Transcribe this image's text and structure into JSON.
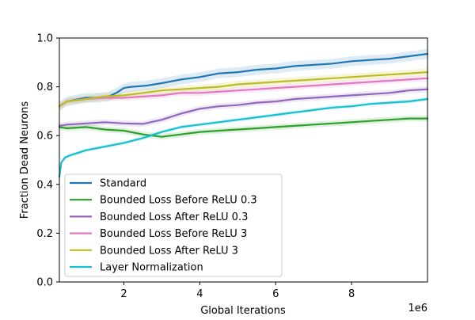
{
  "chart_data": {
    "type": "line",
    "title": "",
    "xlabel": "Global Iterations",
    "ylabel": "Fraction Dead Neurons",
    "x_offset_label": "1e6",
    "xlim": [
      0.3,
      10.0
    ],
    "ylim": [
      0.0,
      1.0
    ],
    "x_ticks": [
      {
        "value": 2,
        "label": "2"
      },
      {
        "value": 4,
        "label": "4"
      },
      {
        "value": 6,
        "label": "6"
      },
      {
        "value": 8,
        "label": "8"
      }
    ],
    "y_ticks": [
      {
        "value": 0.0,
        "label": "0.0"
      },
      {
        "value": 0.2,
        "label": "0.2"
      },
      {
        "value": 0.4,
        "label": "0.4"
      },
      {
        "value": 0.6,
        "label": "0.6"
      },
      {
        "value": 0.8,
        "label": "0.8"
      },
      {
        "value": 1.0,
        "label": "1.0"
      }
    ],
    "grid": false,
    "legend_position": "lower-left",
    "series": [
      {
        "name": "Standard",
        "color": "#1f77b4",
        "band": 0.02,
        "x": [
          0.3,
          0.5,
          1.0,
          1.3,
          1.6,
          1.8,
          2.0,
          2.2,
          2.6,
          3.0,
          3.5,
          4.0,
          4.5,
          5.0,
          5.5,
          6.0,
          6.5,
          7.0,
          7.5,
          8.0,
          8.5,
          9.0,
          9.5,
          10.0
        ],
        "y": [
          0.72,
          0.74,
          0.755,
          0.755,
          0.76,
          0.775,
          0.795,
          0.8,
          0.805,
          0.815,
          0.83,
          0.84,
          0.855,
          0.86,
          0.87,
          0.875,
          0.885,
          0.89,
          0.895,
          0.905,
          0.91,
          0.915,
          0.925,
          0.935
        ]
      },
      {
        "name": "Bounded Loss Before ReLU 0.3",
        "color": "#2ca02c",
        "band": 0.012,
        "x": [
          0.3,
          0.5,
          1.0,
          1.5,
          2.0,
          2.5,
          3.0,
          3.5,
          4.0,
          4.5,
          5.0,
          5.5,
          6.0,
          6.5,
          7.0,
          7.5,
          8.0,
          8.5,
          9.0,
          9.5,
          10.0
        ],
        "y": [
          0.635,
          0.63,
          0.635,
          0.625,
          0.62,
          0.605,
          0.595,
          0.605,
          0.615,
          0.62,
          0.625,
          0.63,
          0.635,
          0.64,
          0.645,
          0.65,
          0.655,
          0.66,
          0.665,
          0.67,
          0.67
        ]
      },
      {
        "name": "Bounded Loss After ReLU 0.3",
        "color": "#9467bd",
        "band": 0.012,
        "x": [
          0.3,
          0.5,
          1.0,
          1.5,
          2.0,
          2.5,
          3.0,
          3.5,
          4.0,
          4.5,
          5.0,
          5.5,
          6.0,
          6.5,
          7.0,
          7.5,
          8.0,
          8.5,
          9.0,
          9.5,
          10.0
        ],
        "y": [
          0.64,
          0.645,
          0.65,
          0.655,
          0.65,
          0.648,
          0.665,
          0.69,
          0.71,
          0.72,
          0.725,
          0.735,
          0.74,
          0.75,
          0.755,
          0.76,
          0.765,
          0.77,
          0.775,
          0.785,
          0.79
        ]
      },
      {
        "name": "Bounded Loss Before ReLU 3",
        "color": "#e377c2",
        "band": 0.012,
        "x": [
          0.3,
          0.5,
          1.0,
          1.5,
          2.0,
          2.5,
          3.0,
          3.5,
          4.0,
          4.5,
          5.0,
          5.5,
          6.0,
          6.5,
          7.0,
          7.5,
          8.0,
          8.5,
          9.0,
          9.5,
          10.0
        ],
        "y": [
          0.72,
          0.74,
          0.75,
          0.755,
          0.755,
          0.76,
          0.765,
          0.775,
          0.775,
          0.78,
          0.785,
          0.79,
          0.795,
          0.8,
          0.805,
          0.81,
          0.815,
          0.82,
          0.825,
          0.83,
          0.835
        ]
      },
      {
        "name": "Bounded Loss After ReLU 3",
        "color": "#bcbd22",
        "band": 0.015,
        "x": [
          0.3,
          0.5,
          1.0,
          1.5,
          2.0,
          2.5,
          3.0,
          3.5,
          4.0,
          4.5,
          5.0,
          5.5,
          6.0,
          6.5,
          7.0,
          7.5,
          8.0,
          8.5,
          9.0,
          9.5,
          10.0
        ],
        "y": [
          0.72,
          0.74,
          0.75,
          0.76,
          0.765,
          0.775,
          0.785,
          0.79,
          0.795,
          0.8,
          0.81,
          0.815,
          0.82,
          0.825,
          0.83,
          0.835,
          0.84,
          0.845,
          0.85,
          0.855,
          0.86
        ]
      },
      {
        "name": "Layer Normalization",
        "color": "#17becf",
        "band": 0.008,
        "x": [
          0.3,
          0.35,
          0.45,
          0.6,
          0.8,
          1.0,
          1.5,
          2.0,
          2.5,
          3.0,
          3.5,
          4.0,
          4.5,
          5.0,
          5.5,
          6.0,
          6.5,
          7.0,
          7.5,
          8.0,
          8.5,
          9.0,
          9.5,
          10.0
        ],
        "y": [
          0.43,
          0.49,
          0.51,
          0.52,
          0.53,
          0.54,
          0.555,
          0.57,
          0.59,
          0.615,
          0.635,
          0.645,
          0.655,
          0.665,
          0.675,
          0.685,
          0.695,
          0.705,
          0.715,
          0.72,
          0.73,
          0.735,
          0.74,
          0.75
        ]
      }
    ]
  }
}
